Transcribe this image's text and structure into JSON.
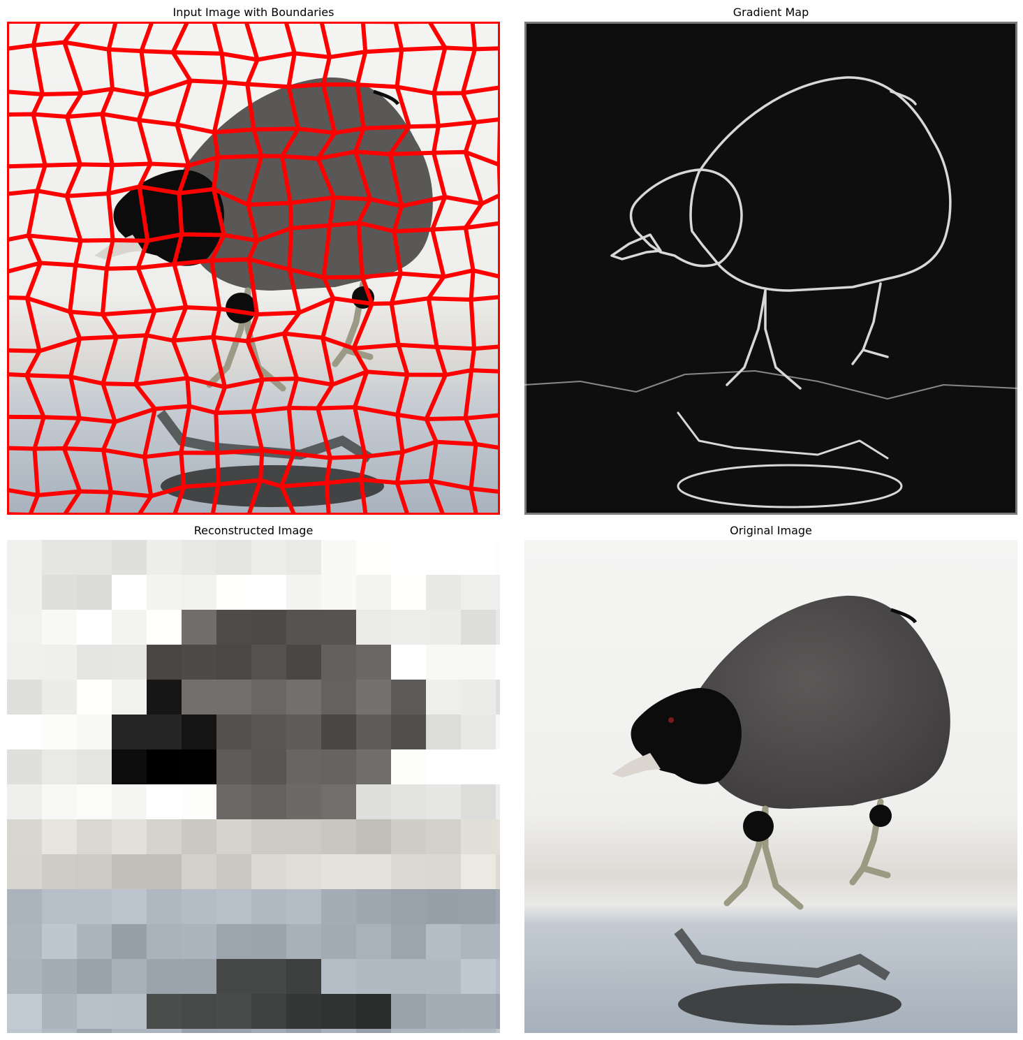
{
  "panels": [
    {
      "id": "boundaries",
      "title": "Input Image with Boundaries"
    },
    {
      "id": "gradient",
      "title": "Gradient Map"
    },
    {
      "id": "reconstructed",
      "title": "Reconstructed Image"
    },
    {
      "id": "original",
      "title": "Original Image"
    }
  ],
  "colors": {
    "boundary": "#ff0000",
    "snow": "#f2f3f1",
    "water": "#a9b3bd",
    "bird_body": "#4e4c4b",
    "bird_head": "#0d0c0d",
    "gradient_bg": "#0e0e0e",
    "edge": "#d8d8d8"
  },
  "icons": [
    "coot-bird-photo",
    "superpixel-boundaries",
    "edge-map",
    "superpixel-mosaic"
  ]
}
